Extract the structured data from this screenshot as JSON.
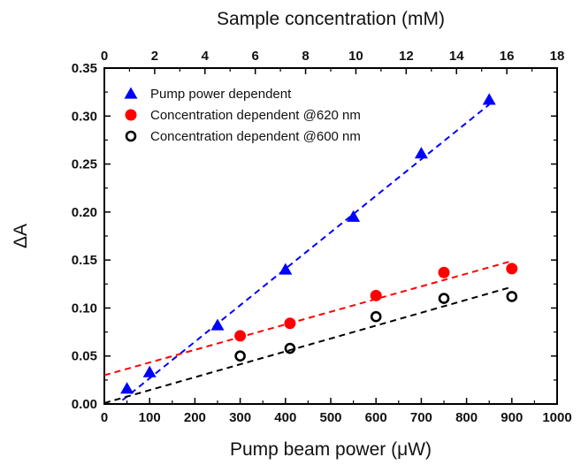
{
  "chart_data": {
    "type": "scatter",
    "xlabel": "Pump beam power (",
    "xlabel_unit": "μW",
    "xlabel_close": ")",
    "ylabel": "ΔA",
    "x2label": "Sample concentration (mM)",
    "xlim": [
      0,
      1000
    ],
    "ylim": [
      0,
      0.35
    ],
    "x2lim": [
      0,
      18
    ],
    "x_ticks": [
      0,
      100,
      200,
      300,
      400,
      500,
      600,
      700,
      800,
      900,
      1000
    ],
    "x_tick_labels": [
      "0",
      "100",
      "200",
      "300",
      "400",
      "500",
      "600",
      "700",
      "800",
      "900",
      "1000"
    ],
    "y_ticks": [
      0,
      0.05,
      0.1,
      0.15,
      0.2,
      0.25,
      0.3,
      0.35
    ],
    "y_tick_labels": [
      "0.00",
      "0.05",
      "0.10",
      "0.15",
      "0.20",
      "0.25",
      "0.30",
      "0.35"
    ],
    "x2_ticks": [
      0,
      2,
      4,
      6,
      8,
      10,
      12,
      14,
      16,
      18
    ],
    "x2_tick_labels": [
      "0",
      "2",
      "4",
      "6",
      "8",
      "10",
      "12",
      "14",
      "16",
      "18"
    ],
    "legend_position": "top-left",
    "grid": false,
    "series": [
      {
        "name": "Pump power dependent",
        "marker": "filled-triangle",
        "color": "#0000ff",
        "x": [
          50,
          100,
          250,
          400,
          550,
          700,
          850
        ],
        "y": [
          0.016,
          0.033,
          0.082,
          0.14,
          0.195,
          0.261,
          0.317
        ],
        "fit": {
          "x0": 40,
          "y0": 0.004,
          "x1": 850,
          "y1": 0.312
        }
      },
      {
        "name": "Concentration dependent @620 nm",
        "marker": "filled-circle",
        "color": "#ff0000",
        "x": [
          300,
          410,
          600,
          750,
          900
        ],
        "y": [
          0.071,
          0.084,
          0.113,
          0.137,
          0.141
        ],
        "fit": {
          "x0": 0,
          "y0": 0.03,
          "x1": 900,
          "y1": 0.149
        }
      },
      {
        "name": "Concentration dependent @600 nm",
        "marker": "open-circle",
        "color": "#000000",
        "x": [
          300,
          410,
          600,
          750,
          900
        ],
        "y": [
          0.05,
          0.058,
          0.091,
          0.11,
          0.112
        ],
        "fit": {
          "x0": 0,
          "y0": 0.001,
          "x1": 900,
          "y1": 0.122
        }
      }
    ]
  }
}
